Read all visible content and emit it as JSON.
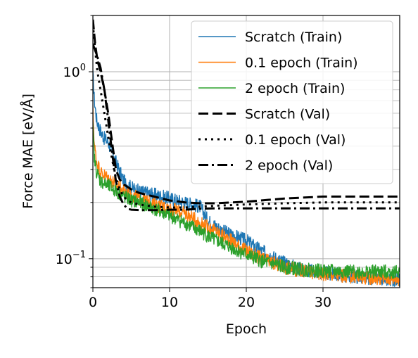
{
  "chart_data": {
    "type": "line",
    "xlabel": "Epoch",
    "ylabel": "Force MAE [eV/Å]",
    "xlim": [
      0,
      40
    ],
    "ylim": [
      0.07,
      2.0
    ],
    "yscale": "log",
    "grid": true,
    "legend_position": "top-right",
    "x_ticks": [
      {
        "value": 0,
        "label": "0"
      },
      {
        "value": 10,
        "label": "10"
      },
      {
        "value": 20,
        "label": "20"
      },
      {
        "value": 30,
        "label": "30"
      }
    ],
    "y_ticks": [
      {
        "value": 1.0,
        "base": "10",
        "exp": "0"
      },
      {
        "value": 0.1,
        "base": "10",
        "exp": "−1"
      }
    ],
    "series": [
      {
        "name": "Scratch (Train)",
        "color": "#1f77b4",
        "style": "solid",
        "x": [
          0,
          0.2,
          0.5,
          1,
          1.5,
          2,
          3,
          4,
          5,
          6,
          8,
          10,
          12,
          14,
          15,
          17,
          20,
          22,
          25,
          27,
          30,
          33,
          36,
          40
        ],
        "y": [
          0.95,
          0.7,
          0.55,
          0.48,
          0.44,
          0.42,
          0.33,
          0.26,
          0.24,
          0.23,
          0.22,
          0.21,
          0.2,
          0.19,
          0.16,
          0.14,
          0.125,
          0.11,
          0.095,
          0.088,
          0.084,
          0.081,
          0.079,
          0.077
        ]
      },
      {
        "name": "0.1 epoch (Train)",
        "color": "#ff7f0e",
        "style": "solid",
        "x": [
          0,
          0.2,
          0.5,
          1,
          2,
          3,
          4,
          5,
          6,
          8,
          10,
          12,
          14,
          16,
          18,
          20,
          22,
          25,
          28,
          30,
          34,
          37,
          40
        ],
        "y": [
          0.6,
          0.4,
          0.33,
          0.29,
          0.27,
          0.25,
          0.23,
          0.22,
          0.21,
          0.195,
          0.185,
          0.175,
          0.155,
          0.14,
          0.125,
          0.11,
          0.1,
          0.09,
          0.085,
          0.083,
          0.08,
          0.079,
          0.078
        ]
      },
      {
        "name": "2 epoch (Train)",
        "color": "#2ca02c",
        "style": "solid",
        "x": [
          0,
          0.2,
          0.5,
          1,
          2,
          3,
          4,
          5,
          6,
          8,
          10,
          12,
          14,
          16,
          18,
          20,
          22,
          25,
          28,
          30,
          34,
          37,
          40
        ],
        "y": [
          0.5,
          0.34,
          0.29,
          0.26,
          0.245,
          0.23,
          0.215,
          0.205,
          0.2,
          0.185,
          0.17,
          0.155,
          0.14,
          0.125,
          0.115,
          0.105,
          0.097,
          0.09,
          0.087,
          0.086,
          0.085,
          0.085,
          0.085
        ]
      },
      {
        "name": "Scratch (Val)",
        "color": "#000000",
        "style": "dashed",
        "x": [
          0,
          0.3,
          0.6,
          1,
          1.5,
          2,
          2.5,
          3,
          3.5,
          4,
          5,
          6,
          8,
          10,
          12,
          14,
          16,
          20,
          25,
          30,
          35,
          40
        ],
        "y": [
          1.9,
          1.4,
          1.15,
          1.0,
          0.8,
          0.6,
          0.42,
          0.3,
          0.265,
          0.25,
          0.235,
          0.225,
          0.215,
          0.205,
          0.2,
          0.198,
          0.198,
          0.202,
          0.21,
          0.215,
          0.215,
          0.215
        ]
      },
      {
        "name": "0.1 epoch (Val)",
        "color": "#000000",
        "style": "dotted",
        "x": [
          0,
          0.3,
          0.6,
          1,
          1.5,
          2,
          2.5,
          3,
          3.5,
          4,
          4.5,
          5,
          6,
          8,
          10,
          12,
          14,
          16,
          20,
          25,
          30,
          35,
          40
        ],
        "y": [
          1.8,
          1.3,
          1.0,
          0.8,
          0.6,
          0.45,
          0.34,
          0.27,
          0.235,
          0.215,
          0.205,
          0.2,
          0.195,
          0.19,
          0.188,
          0.188,
          0.19,
          0.192,
          0.195,
          0.198,
          0.2,
          0.2,
          0.2
        ]
      },
      {
        "name": "2 epoch (Val)",
        "color": "#000000",
        "style": "dashdot",
        "x": [
          0,
          0.3,
          0.6,
          1,
          1.5,
          2,
          2.5,
          3,
          3.5,
          4,
          4.5,
          5,
          6,
          8,
          10,
          12,
          14,
          16,
          20,
          25,
          30,
          35,
          40
        ],
        "y": [
          1.4,
          1.3,
          1.2,
          1.05,
          0.8,
          0.55,
          0.37,
          0.26,
          0.215,
          0.195,
          0.185,
          0.183,
          0.182,
          0.182,
          0.183,
          0.183,
          0.185,
          0.186,
          0.186,
          0.186,
          0.186,
          0.186,
          0.186
        ]
      }
    ]
  }
}
